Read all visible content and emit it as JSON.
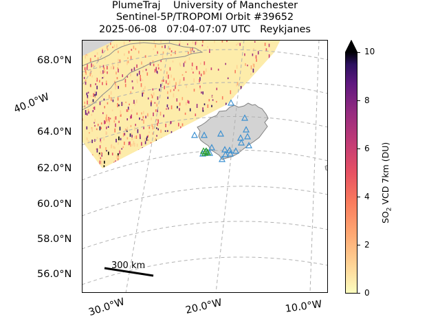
{
  "title": {
    "line1": "PlumeTraj    University of Manchester",
    "line2": "Sentinel-5P/TROPOMI Orbit #39652",
    "line3": "2025-06-08   07:04-07:07 UTC   Reykjanes"
  },
  "map": {
    "lat_labels": [
      "68.0°N",
      "64.0°N",
      "62.0°N",
      "60.0°N",
      "58.0°N",
      "56.0°N"
    ],
    "lon_labels": [
      "30.0°W",
      "20.0°W",
      "10.0°W"
    ],
    "side_lon_label": "40.0°W",
    "scale_bar_label": "300 km",
    "land_color": "#d3d3d3",
    "coast_color": "#7f7f7f",
    "swath_base_color": "#fdecaa",
    "marker_blue": "#3a8fd0",
    "marker_green": "#2ca02c",
    "gridline_color": "#b0b0b0"
  },
  "colorbar": {
    "ticks": [
      "0",
      "2",
      "4",
      "6",
      "8",
      "10"
    ],
    "label_main": "SO",
    "label_sub": "2",
    "label_rest": " VCD 7km (DU)",
    "colormap": "magma_r",
    "vmin": 0,
    "vmax": 10,
    "extend": "max"
  }
}
